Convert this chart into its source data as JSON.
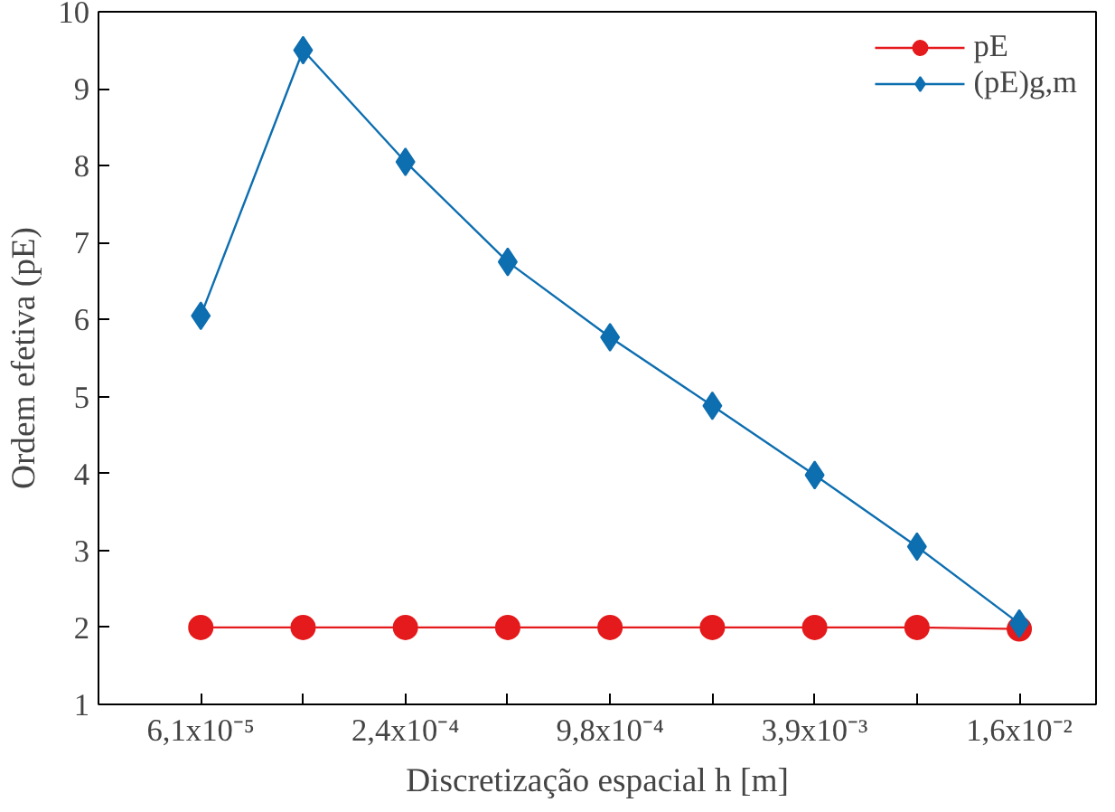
{
  "chart_data": {
    "type": "line",
    "xlabel": "Discretização espacial h [m]",
    "ylabel": "Ordem efetiva (pE)",
    "categories": [
      "6,1x10⁻⁵",
      null,
      "2,4x10⁻⁴",
      null,
      "9,8x10⁻⁴",
      null,
      "3,9x10⁻³",
      null,
      "1,6x10⁻²"
    ],
    "series": [
      {
        "name": "pE",
        "color": "#e41a1c",
        "marker": "circle",
        "values": [
          2.0,
          2.0,
          2.0,
          2.0,
          2.0,
          2.0,
          2.0,
          2.0,
          1.98
        ]
      },
      {
        "name": "(pE)g,m",
        "color": "#0d6eb0",
        "marker": "diamond",
        "values": [
          6.05,
          9.5,
          8.05,
          6.75,
          5.77,
          4.88,
          3.98,
          3.05,
          2.05
        ]
      }
    ],
    "ylim": [
      1,
      10
    ],
    "yticks": [
      1,
      2,
      3,
      4,
      5,
      6,
      7,
      8,
      9,
      10
    ],
    "grid": false,
    "legend": "top right",
    "line_style": "solid"
  }
}
